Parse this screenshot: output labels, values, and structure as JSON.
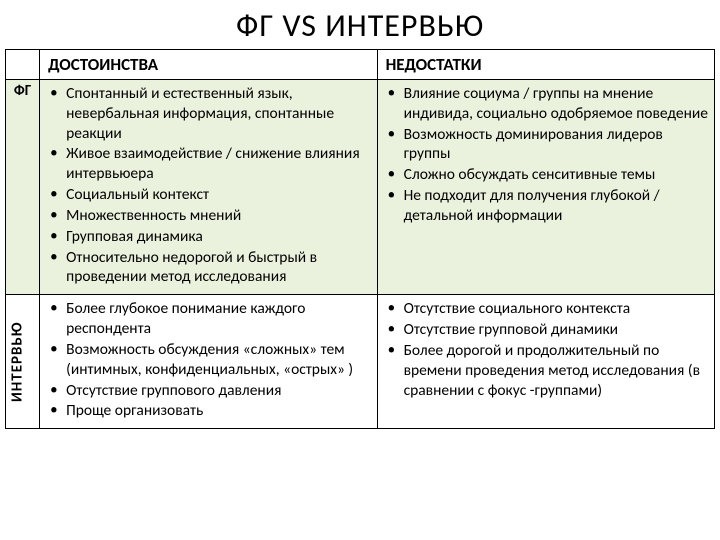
{
  "title": "ФГ VS ИНТЕРВЬЮ",
  "headers": {
    "advantages": "ДОСТОИНСТВА",
    "disadvantages": "НЕДОСТАТКИ"
  },
  "rows": {
    "fg": {
      "label": "ФГ",
      "advantages": [
        "Спонтанный и естественный язык, невербальная информация, спонтанные реакции",
        "Живое взаимодействие / снижение влияния интервьюера",
        "Социальный контекст",
        "Множественность мнений",
        "Групповая динамика",
        "Относительно недорогой и быстрый в проведении метод исследования"
      ],
      "disadvantages": [
        "Влияние социума / группы на мнение индивида, социально одобряемое поведение",
        "Возможность доминирования лидеров группы",
        "Сложно обсуждать сенситивные темы",
        "Не подходит для получения глубокой / детальной информации"
      ]
    },
    "interview": {
      "label": "ИНТЕРВЬЮ",
      "advantages": [
        "Более глубокое понимание каждого респондента",
        "Возможность обсуждения «сложных» тем (интимных, конфиденциальных, «острых» )",
        "Отсутствие группового давления",
        "Проще организовать"
      ],
      "disadvantages": [
        "Отсутствие социального контекста",
        "Отсутствие групповой динамики",
        "Более дорогой и продолжительный по времени проведения метод исследования (в сравнении с фокус -группами)"
      ]
    }
  }
}
